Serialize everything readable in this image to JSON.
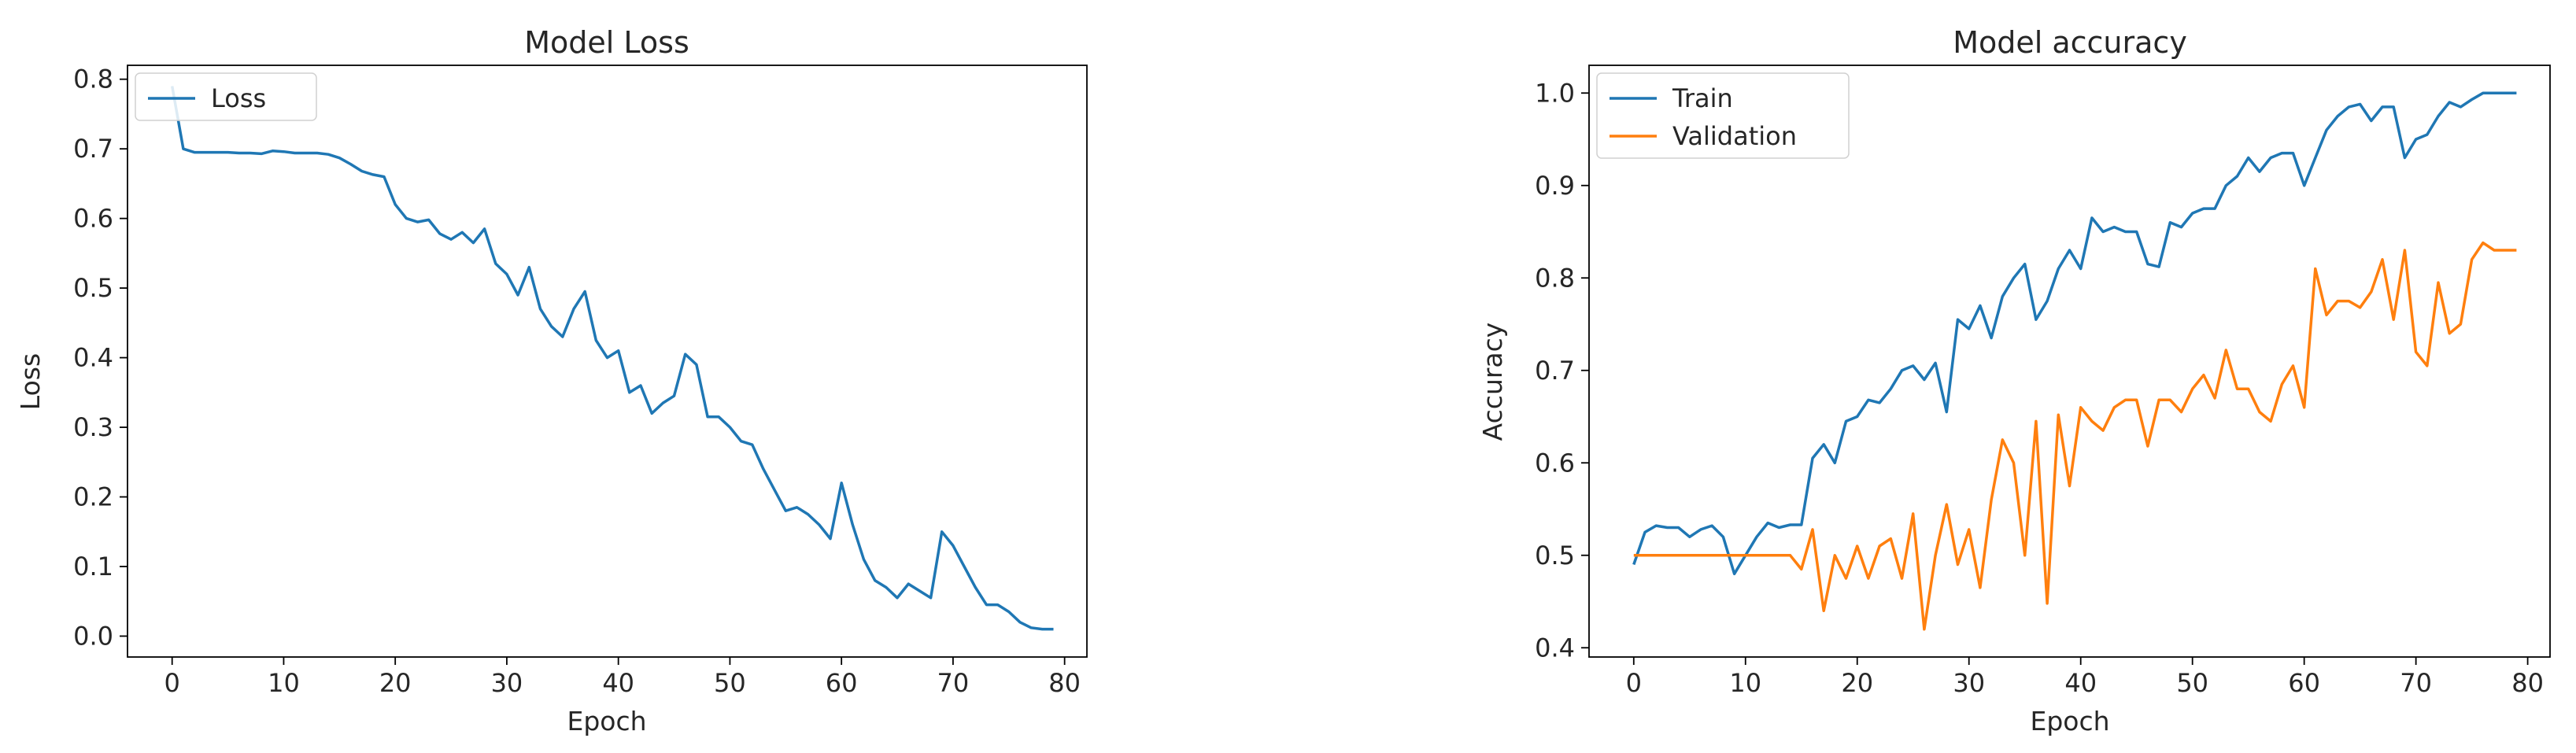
{
  "chart_data": [
    {
      "type": "line",
      "title": "Model Loss",
      "xlabel": "Epoch",
      "ylabel": "Loss",
      "xlim": [
        -4,
        82
      ],
      "ylim": [
        -0.03,
        0.82
      ],
      "xticks": [
        0,
        10,
        20,
        30,
        40,
        50,
        60,
        70,
        80
      ],
      "yticks": [
        0.0,
        0.1,
        0.2,
        0.3,
        0.4,
        0.5,
        0.6,
        0.7,
        0.8
      ],
      "ytick_decimals": 1,
      "grid": false,
      "legend": "upper-left",
      "series": [
        {
          "name": "Loss",
          "color": "#1f77b4",
          "x": [
            0,
            1,
            2,
            3,
            4,
            5,
            6,
            7,
            8,
            9,
            10,
            11,
            12,
            13,
            14,
            15,
            16,
            17,
            18,
            19,
            20,
            21,
            22,
            23,
            24,
            25,
            26,
            27,
            28,
            29,
            30,
            31,
            32,
            33,
            34,
            35,
            36,
            37,
            38,
            39,
            40,
            41,
            42,
            43,
            44,
            45,
            46,
            47,
            48,
            49,
            50,
            51,
            52,
            53,
            54,
            55,
            56,
            57,
            58,
            59,
            60,
            61,
            62,
            63,
            64,
            65,
            66,
            67,
            68,
            69,
            70,
            71,
            72,
            73,
            74,
            75,
            76,
            77,
            78,
            79
          ],
          "values": [
            0.79,
            0.7,
            0.695,
            0.695,
            0.695,
            0.695,
            0.694,
            0.694,
            0.693,
            0.697,
            0.696,
            0.694,
            0.694,
            0.694,
            0.692,
            0.687,
            0.678,
            0.668,
            0.663,
            0.66,
            0.62,
            0.6,
            0.595,
            0.598,
            0.578,
            0.57,
            0.58,
            0.565,
            0.585,
            0.535,
            0.52,
            0.49,
            0.53,
            0.47,
            0.445,
            0.43,
            0.47,
            0.495,
            0.425,
            0.4,
            0.41,
            0.35,
            0.36,
            0.32,
            0.335,
            0.345,
            0.405,
            0.39,
            0.315,
            0.315,
            0.3,
            0.28,
            0.275,
            0.24,
            0.21,
            0.18,
            0.185,
            0.175,
            0.16,
            0.14,
            0.22,
            0.16,
            0.11,
            0.08,
            0.07,
            0.055,
            0.075,
            0.065,
            0.055,
            0.15,
            0.13,
            0.1,
            0.07,
            0.045,
            0.045,
            0.035,
            0.02,
            0.012,
            0.01,
            0.01
          ]
        }
      ]
    },
    {
      "type": "line",
      "title": "Model accuracy",
      "xlabel": "Epoch",
      "ylabel": "Accuracy",
      "xlim": [
        -4,
        82
      ],
      "ylim": [
        0.39,
        1.03
      ],
      "xticks": [
        0,
        10,
        20,
        30,
        40,
        50,
        60,
        70,
        80
      ],
      "yticks": [
        0.4,
        0.5,
        0.6,
        0.7,
        0.8,
        0.9,
        1.0
      ],
      "ytick_decimals": 1,
      "grid": false,
      "legend": "upper-left",
      "series": [
        {
          "name": "Train",
          "color": "#1f77b4",
          "x": [
            0,
            1,
            2,
            3,
            4,
            5,
            6,
            7,
            8,
            9,
            10,
            11,
            12,
            13,
            14,
            15,
            16,
            17,
            18,
            19,
            20,
            21,
            22,
            23,
            24,
            25,
            26,
            27,
            28,
            29,
            30,
            31,
            32,
            33,
            34,
            35,
            36,
            37,
            38,
            39,
            40,
            41,
            42,
            43,
            44,
            45,
            46,
            47,
            48,
            49,
            50,
            51,
            52,
            53,
            54,
            55,
            56,
            57,
            58,
            59,
            60,
            61,
            62,
            63,
            64,
            65,
            66,
            67,
            68,
            69,
            70,
            71,
            72,
            73,
            74,
            75,
            76,
            77,
            78,
            79
          ],
          "values": [
            0.49,
            0.525,
            0.532,
            0.53,
            0.53,
            0.52,
            0.528,
            0.532,
            0.52,
            0.48,
            0.5,
            0.52,
            0.535,
            0.53,
            0.533,
            0.533,
            0.605,
            0.62,
            0.6,
            0.645,
            0.65,
            0.668,
            0.665,
            0.68,
            0.7,
            0.705,
            0.69,
            0.708,
            0.655,
            0.755,
            0.745,
            0.77,
            0.735,
            0.78,
            0.8,
            0.815,
            0.755,
            0.775,
            0.81,
            0.83,
            0.81,
            0.865,
            0.85,
            0.855,
            0.85,
            0.85,
            0.815,
            0.812,
            0.86,
            0.855,
            0.87,
            0.875,
            0.875,
            0.9,
            0.91,
            0.93,
            0.915,
            0.93,
            0.935,
            0.935,
            0.9,
            0.93,
            0.96,
            0.975,
            0.985,
            0.988,
            0.97,
            0.985,
            0.985,
            0.93,
            0.95,
            0.955,
            0.975,
            0.99,
            0.985,
            0.993,
            1.0,
            1.0,
            1.0,
            1.0
          ]
        },
        {
          "name": "Validation",
          "color": "#ff7f0e",
          "x": [
            0,
            1,
            2,
            3,
            4,
            5,
            6,
            7,
            8,
            9,
            10,
            11,
            12,
            13,
            14,
            15,
            16,
            17,
            18,
            19,
            20,
            21,
            22,
            23,
            24,
            25,
            26,
            27,
            28,
            29,
            30,
            31,
            32,
            33,
            34,
            35,
            36,
            37,
            38,
            39,
            40,
            41,
            42,
            43,
            44,
            45,
            46,
            47,
            48,
            49,
            50,
            51,
            52,
            53,
            54,
            55,
            56,
            57,
            58,
            59,
            60,
            61,
            62,
            63,
            64,
            65,
            66,
            67,
            68,
            69,
            70,
            71,
            72,
            73,
            74,
            75,
            76,
            77,
            78,
            79
          ],
          "values": [
            0.5,
            0.5,
            0.5,
            0.5,
            0.5,
            0.5,
            0.5,
            0.5,
            0.5,
            0.5,
            0.5,
            0.5,
            0.5,
            0.5,
            0.5,
            0.485,
            0.528,
            0.44,
            0.5,
            0.475,
            0.51,
            0.475,
            0.51,
            0.518,
            0.475,
            0.545,
            0.42,
            0.5,
            0.555,
            0.49,
            0.528,
            0.465,
            0.56,
            0.625,
            0.6,
            0.5,
            0.645,
            0.448,
            0.652,
            0.575,
            0.66,
            0.645,
            0.635,
            0.66,
            0.668,
            0.668,
            0.618,
            0.668,
            0.668,
            0.655,
            0.68,
            0.695,
            0.67,
            0.722,
            0.68,
            0.68,
            0.655,
            0.645,
            0.685,
            0.705,
            0.66,
            0.81,
            0.76,
            0.775,
            0.775,
            0.768,
            0.785,
            0.82,
            0.755,
            0.83,
            0.72,
            0.705,
            0.795,
            0.74,
            0.75,
            0.82,
            0.838,
            0.83,
            0.83,
            0.83
          ]
        }
      ]
    }
  ]
}
